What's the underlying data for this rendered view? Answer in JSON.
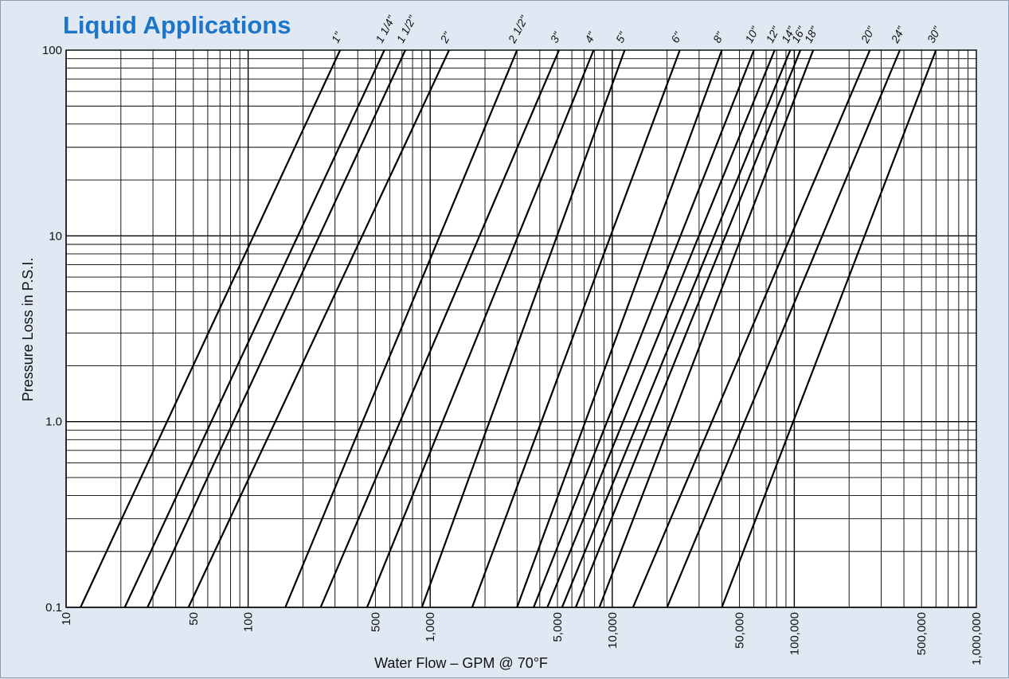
{
  "chart_data": {
    "type": "line",
    "title": "Liquid Applications",
    "xlabel": "Water Flow – GPM @ 70°F",
    "ylabel": "Pressure Loss in P.S.I.",
    "x_scale": "log",
    "y_scale": "log",
    "xlim": [
      10,
      1000000
    ],
    "ylim": [
      0.1,
      100
    ],
    "grid": true,
    "x_ticks": [
      {
        "value": 10,
        "label": "10"
      },
      {
        "value": 50,
        "label": "50"
      },
      {
        "value": 100,
        "label": "100"
      },
      {
        "value": 500,
        "label": "500"
      },
      {
        "value": 1000,
        "label": "1,000"
      },
      {
        "value": 5000,
        "label": "5,000"
      },
      {
        "value": 10000,
        "label": "10,000"
      },
      {
        "value": 50000,
        "label": "50,000"
      },
      {
        "value": 100000,
        "label": "100,000"
      },
      {
        "value": 500000,
        "label": "500,000"
      },
      {
        "value": 1000000,
        "label": "1,000,000"
      }
    ],
    "y_ticks": [
      {
        "value": 0.1,
        "label": "0.1"
      },
      {
        "value": 1,
        "label": "1.0"
      },
      {
        "value": 10,
        "label": "10"
      },
      {
        "value": 100,
        "label": "100"
      }
    ],
    "series": [
      {
        "name": "1\"",
        "x": [
          12,
          320
        ],
        "y": [
          0.1,
          100
        ]
      },
      {
        "name": "1 1/4\"",
        "x": [
          21,
          560
        ],
        "y": [
          0.1,
          100
        ]
      },
      {
        "name": "1 1/2\"",
        "x": [
          28,
          730
        ],
        "y": [
          0.1,
          100
        ]
      },
      {
        "name": "2\"",
        "x": [
          47,
          1270
        ],
        "y": [
          0.1,
          100
        ]
      },
      {
        "name": "2 1/2\"",
        "x": [
          160,
          3000
        ],
        "y": [
          0.1,
          100
        ]
      },
      {
        "name": "3\"",
        "x": [
          250,
          5100
        ],
        "y": [
          0.1,
          100
        ]
      },
      {
        "name": "4\"",
        "x": [
          450,
          7900
        ],
        "y": [
          0.1,
          100
        ]
      },
      {
        "name": "5\"",
        "x": [
          900,
          11700
        ],
        "y": [
          0.1,
          100
        ]
      },
      {
        "name": "6\"",
        "x": [
          1700,
          23500
        ],
        "y": [
          0.1,
          100
        ]
      },
      {
        "name": "8\"",
        "x": [
          3000,
          40000
        ],
        "y": [
          0.1,
          100
        ]
      },
      {
        "name": "10\"",
        "x": [
          3700,
          60000
        ],
        "y": [
          0.1,
          100
        ]
      },
      {
        "name": "12\"",
        "x": [
          4400,
          78000
        ],
        "y": [
          0.1,
          100
        ]
      },
      {
        "name": "14\"",
        "x": [
          5300,
          95000
        ],
        "y": [
          0.1,
          100
        ]
      },
      {
        "name": "16\"",
        "x": [
          6300,
          108000
        ],
        "y": [
          0.1,
          100
        ]
      },
      {
        "name": "18\"",
        "x": [
          8500,
          127000
        ],
        "y": [
          0.1,
          100
        ]
      },
      {
        "name": "20\"",
        "x": [
          13000,
          260000
        ],
        "y": [
          0.1,
          100
        ]
      },
      {
        "name": "24\"",
        "x": [
          20000,
          380000
        ],
        "y": [
          0.1,
          100
        ]
      },
      {
        "name": "30\"",
        "x": [
          40000,
          600000
        ],
        "y": [
          0.1,
          100
        ]
      }
    ]
  }
}
